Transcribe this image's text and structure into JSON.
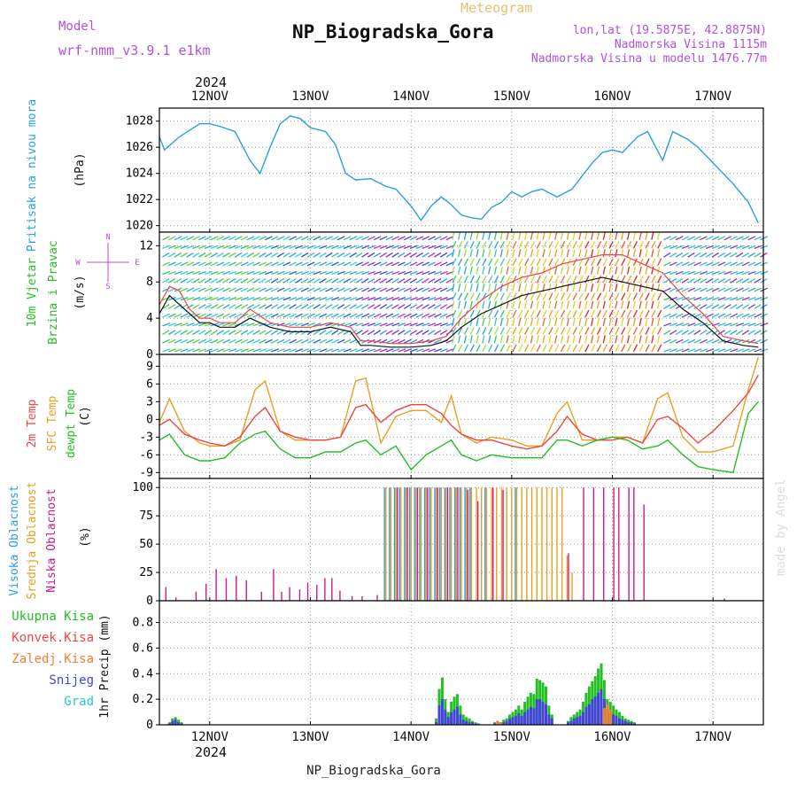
{
  "header": {
    "title": "NP_Biogradska_Gora",
    "meteogram_label": "Meteogram",
    "model_label": "Model",
    "model_name": "wrf-nmm_v3.9.1  e1km",
    "lonlat": "lon,lat (19.5875E, 42.8875N)",
    "elevation": "Nadmorska Visina 1115m",
    "model_elevation": "Nadmorska Visina u modelu 1476.77m",
    "footer_station": "NP_Biogradska_Gora",
    "credit": "made by Angel",
    "year": "2024"
  },
  "colors": {
    "pressure": "#2a9fe0",
    "temp2m": "#ee4444",
    "sfc_temp": "#e8a020",
    "dewpoint": "#22c022",
    "cloud_high": "#2a9fe0",
    "cloud_mid": "#e8a020",
    "cloud_low": "#cc1a88",
    "precip_total": "#22c022",
    "precip_conv": "#ee4444",
    "precip_frz": "#f08030",
    "precip_snow": "#4444dd",
    "precip_grad": "#22cccc",
    "label_violet": "#b050e0"
  },
  "chart_data": [
    {
      "type": "line",
      "panel": "pressure",
      "ylabel_title": "Pritisak na nivou mora",
      "ylabel_unit": "(hPa)",
      "ylim": [
        1019.5,
        1029
      ],
      "yticks": [
        "1020",
        "1022",
        "1024",
        "1026",
        "1028"
      ],
      "x_days": [
        11.5,
        11.55,
        11.7,
        11.9,
        12.0,
        12.1,
        12.25,
        12.4,
        12.5,
        12.6,
        12.7,
        12.8,
        12.9,
        13.0,
        13.15,
        13.25,
        13.35,
        13.45,
        13.6,
        13.75,
        13.85,
        14.0,
        14.1,
        14.2,
        14.3,
        14.4,
        14.5,
        14.6,
        14.7,
        14.8,
        14.9,
        15.0,
        15.1,
        15.2,
        15.3,
        15.45,
        15.6,
        15.7,
        15.8,
        15.9,
        16.0,
        16.1,
        16.25,
        16.35,
        16.5,
        16.6,
        16.75,
        16.85,
        17.0,
        17.2,
        17.35,
        17.45
      ],
      "series": [
        {
          "values": [
            1026.8,
            1025.8,
            1026.8,
            1027.8,
            1027.8,
            1027.6,
            1027.2,
            1025.0,
            1024.0,
            1026.0,
            1027.8,
            1028.4,
            1028.2,
            1027.5,
            1027.2,
            1026.2,
            1024.0,
            1023.5,
            1023.6,
            1023.0,
            1022.8,
            1021.5,
            1020.4,
            1021.5,
            1022.2,
            1021.6,
            1020.8,
            1020.6,
            1020.5,
            1021.4,
            1021.8,
            1022.6,
            1022.2,
            1022.6,
            1022.8,
            1022.2,
            1022.8,
            1023.8,
            1024.8,
            1025.6,
            1025.8,
            1025.6,
            1026.8,
            1027.2,
            1025.0,
            1027.2,
            1026.6,
            1026.0,
            1024.8,
            1023.2,
            1021.8,
            1020.2
          ]
        }
      ]
    },
    {
      "type": "line",
      "panel": "wind",
      "ylabel_title": "10m Vjetar",
      "ylabel_title2": "Brzina i Pravac",
      "ylabel_unit": "(m/s)",
      "compass_n": "N",
      "compass_e": "E",
      "compass_w": "W",
      "compass_s": "S",
      "ylim": [
        0,
        13.5
      ],
      "yticks": [
        "0",
        "4",
        "8",
        "12"
      ],
      "x_days": [
        11.5,
        11.6,
        11.7,
        11.8,
        11.9,
        12.0,
        12.1,
        12.25,
        12.4,
        12.6,
        12.8,
        13.0,
        13.2,
        13.4,
        13.5,
        13.6,
        13.8,
        14.0,
        14.2,
        14.35,
        14.5,
        14.7,
        14.9,
        15.1,
        15.3,
        15.5,
        15.7,
        15.9,
        16.1,
        16.3,
        16.5,
        16.7,
        16.9,
        17.1,
        17.3,
        17.45
      ],
      "series": [
        {
          "name": "speed",
          "values": [
            4.5,
            6.5,
            5.5,
            4.5,
            3.5,
            3.5,
            3.0,
            3.0,
            4.0,
            3.0,
            2.5,
            2.5,
            3.0,
            2.5,
            1.0,
            1.0,
            0.8,
            0.8,
            1.0,
            1.5,
            3.0,
            4.5,
            5.5,
            6.5,
            7.0,
            7.5,
            8.0,
            8.5,
            8.0,
            7.5,
            7.0,
            5.0,
            3.5,
            1.5,
            1.0,
            0.8
          ]
        },
        {
          "name": "gust",
          "values": [
            5.5,
            7.5,
            7.0,
            5.0,
            4.0,
            4.0,
            3.5,
            3.5,
            5.0,
            3.5,
            3.0,
            3.0,
            3.5,
            3.0,
            1.5,
            1.5,
            1.2,
            1.2,
            1.5,
            2.0,
            4.0,
            6.0,
            7.5,
            8.5,
            9.0,
            10.0,
            10.5,
            11.0,
            11.0,
            10.0,
            9.0,
            6.5,
            4.5,
            2.0,
            1.5,
            1.2
          ]
        }
      ]
    },
    {
      "type": "line",
      "panel": "temperature",
      "ylabel_title1": "2m Temp",
      "ylabel_title2": "SFC Temp",
      "ylabel_title3": "dewpt Temp",
      "ylabel_unit": "(C)",
      "ylim": [
        -10,
        11
      ],
      "yticks": [
        "-9",
        "-6",
        "-3",
        "0",
        "3",
        "6",
        "9"
      ],
      "x_days": [
        11.5,
        11.6,
        11.75,
        11.9,
        12.0,
        12.15,
        12.3,
        12.45,
        12.55,
        12.7,
        12.85,
        13.0,
        13.15,
        13.3,
        13.45,
        13.55,
        13.7,
        13.85,
        14.0,
        14.15,
        14.3,
        14.4,
        14.5,
        14.65,
        14.8,
        15.0,
        15.15,
        15.3,
        15.45,
        15.55,
        15.7,
        15.85,
        16.0,
        16.15,
        16.3,
        16.45,
        16.55,
        16.7,
        16.85,
        17.0,
        17.2,
        17.35,
        17.45
      ],
      "series": [
        {
          "name": "2m Temp",
          "values": [
            -1.0,
            0.0,
            -2.5,
            -3.5,
            -4.0,
            -4.5,
            -3.0,
            0.5,
            2.0,
            -2.0,
            -3.0,
            -3.5,
            -3.5,
            -3.0,
            2.0,
            2.5,
            -0.5,
            1.5,
            2.5,
            2.5,
            1.0,
            -1.0,
            -2.5,
            -3.5,
            -3.5,
            -4.5,
            -5.0,
            -4.5,
            -2.0,
            0.5,
            -2.5,
            -3.5,
            -3.5,
            -3.0,
            -4.0,
            0.0,
            0.5,
            -1.5,
            -4.0,
            -2.0,
            1.5,
            4.5,
            7.5
          ]
        },
        {
          "name": "SFC Temp",
          "values": [
            -0.5,
            3.5,
            -2.0,
            -4.0,
            -4.5,
            -4.5,
            -3.5,
            5.0,
            6.5,
            -2.0,
            -3.5,
            -3.5,
            -3.5,
            -3.0,
            6.5,
            7.0,
            -4.0,
            0.5,
            1.5,
            1.5,
            -0.5,
            4.0,
            -2.5,
            -4.0,
            -3.0,
            -3.5,
            -4.5,
            -4.5,
            1.0,
            3.0,
            -3.5,
            -3.5,
            -3.0,
            -3.0,
            -4.0,
            3.5,
            4.5,
            -3.0,
            -5.5,
            -5.5,
            -4.5,
            5.0,
            10.5
          ]
        },
        {
          "name": "dewpt Temp",
          "values": [
            -3.5,
            -2.5,
            -6.0,
            -7.0,
            -7.0,
            -6.5,
            -4.0,
            -2.5,
            -2.0,
            -5.0,
            -6.5,
            -6.5,
            -5.5,
            -5.5,
            -4.0,
            -3.5,
            -6.0,
            -4.5,
            -8.5,
            -6.0,
            -4.5,
            -3.5,
            -6.0,
            -7.0,
            -6.0,
            -6.5,
            -6.5,
            -6.5,
            -3.5,
            -3.5,
            -4.5,
            -3.5,
            -3.0,
            -3.5,
            -5.0,
            -4.5,
            -3.5,
            -6.0,
            -8.0,
            -8.5,
            -9.0,
            1.0,
            3.0
          ]
        }
      ]
    },
    {
      "type": "bar",
      "panel": "clouds",
      "ylabel_high": "Visoka Oblacnost",
      "ylabel_mid": "Srednja Oblacnost",
      "ylabel_low": "Niska Oblacnost",
      "ylabel_unit": "(%)",
      "ylim": [
        0,
        108
      ],
      "yticks": [
        "0",
        "25",
        "50",
        "75",
        "100"
      ],
      "x_days": [
        11.55,
        11.65,
        11.75,
        11.85,
        11.95,
        12.05,
        12.15,
        12.25,
        12.35,
        12.5,
        12.62,
        12.7,
        12.78,
        12.88,
        12.96,
        13.05,
        13.13,
        13.2,
        13.28,
        13.4,
        13.5,
        13.65,
        13.75,
        13.8,
        13.85,
        13.9,
        13.95,
        14.0,
        14.05,
        14.1,
        14.15,
        14.2,
        14.25,
        14.3,
        14.35,
        14.4,
        14.45,
        14.5,
        14.55,
        14.6,
        14.65,
        14.7,
        14.75,
        14.8,
        14.85,
        14.9,
        14.95,
        15.0,
        15.05,
        15.1,
        15.15,
        15.2,
        15.25,
        15.3,
        15.35,
        15.4,
        15.45,
        15.5,
        15.55,
        15.6,
        15.65,
        15.7,
        15.75,
        15.8,
        15.85,
        15.9,
        15.95,
        16.0,
        16.05,
        16.1,
        16.15,
        16.2,
        16.25,
        16.3,
        16.35,
        16.5,
        16.7,
        16.85,
        17.1
      ],
      "series": [
        {
          "name": "Visoka Oblacnost",
          "values": [
            0,
            0,
            0,
            0,
            0,
            0,
            0,
            0,
            0,
            0,
            0,
            0,
            0,
            0,
            0,
            0,
            0,
            0,
            0,
            0,
            0,
            0,
            100,
            100,
            100,
            100,
            100,
            100,
            100,
            100,
            100,
            100,
            100,
            100,
            100,
            100,
            100,
            100,
            100,
            100,
            0,
            0,
            100,
            0,
            0,
            0,
            0,
            0,
            100,
            0,
            0,
            0,
            0,
            0,
            0,
            0,
            0,
            0,
            0,
            0,
            0,
            0,
            0,
            0,
            0,
            0,
            0,
            0,
            0,
            0,
            0,
            0,
            0,
            0,
            0,
            0,
            0,
            0,
            0
          ]
        },
        {
          "name": "Srednja Oblacnost",
          "values": [
            0,
            0,
            0,
            0,
            0,
            0,
            0,
            0,
            0,
            0,
            0,
            0,
            0,
            0,
            0,
            0,
            0,
            0,
            0,
            0,
            0,
            0,
            100,
            100,
            100,
            100,
            100,
            100,
            100,
            100,
            100,
            100,
            100,
            100,
            100,
            100,
            100,
            100,
            100,
            100,
            100,
            100,
            100,
            100,
            100,
            100,
            100,
            100,
            100,
            100,
            100,
            100,
            100,
            100,
            100,
            100,
            100,
            100,
            40,
            25,
            0,
            0,
            0,
            0,
            0,
            0,
            0,
            0,
            0,
            0,
            0,
            0,
            0,
            0,
            0,
            0,
            0,
            0,
            0
          ]
        },
        {
          "name": "Niska Oblacnost",
          "values": [
            12,
            3,
            0,
            8,
            15,
            28,
            20,
            22,
            18,
            8,
            28,
            8,
            12,
            10,
            16,
            14,
            20,
            20,
            9,
            4,
            4,
            5,
            0,
            0,
            100,
            0,
            100,
            0,
            100,
            0,
            100,
            0,
            100,
            0,
            100,
            0,
            100,
            0,
            98,
            0,
            88,
            0,
            0,
            100,
            0,
            98,
            0,
            0,
            0,
            0,
            0,
            0,
            0,
            0,
            0,
            0,
            0,
            0,
            42,
            0,
            0,
            100,
            0,
            100,
            0,
            100,
            0,
            100,
            100,
            0,
            100,
            100,
            0,
            85,
            0,
            0,
            0,
            0,
            2
          ]
        }
      ]
    },
    {
      "type": "bar",
      "panel": "precipitation",
      "ylabel_unit": "1hr Precip (mm)",
      "legend": [
        "Ukupna Kisa",
        "Konvek.Kisa",
        "Zaledj.Kisa",
        "Snijeg",
        "Grad"
      ],
      "ylim": [
        0,
        0.97
      ],
      "yticks": [
        "0",
        "0.2",
        "0.4",
        "0.6",
        "0.8"
      ],
      "x_days": [
        11.6,
        11.63,
        11.66,
        11.69,
        11.72,
        14.25,
        14.28,
        14.31,
        14.34,
        14.37,
        14.4,
        14.43,
        14.46,
        14.49,
        14.52,
        14.55,
        14.58,
        14.61,
        14.64,
        14.67,
        14.83,
        14.86,
        14.89,
        14.92,
        14.95,
        14.98,
        15.01,
        15.04,
        15.07,
        15.1,
        15.13,
        15.16,
        15.19,
        15.22,
        15.25,
        15.28,
        15.31,
        15.34,
        15.37,
        15.4,
        15.56,
        15.59,
        15.62,
        15.65,
        15.68,
        15.71,
        15.74,
        15.77,
        15.8,
        15.83,
        15.86,
        15.89,
        15.92,
        15.95,
        15.98,
        16.01,
        16.04,
        16.07,
        16.1,
        16.13,
        16.16,
        16.19,
        16.22
      ],
      "series": [
        {
          "name": "Ukupna Kisa",
          "values": [
            0.02,
            0.05,
            0.06,
            0.04,
            0.02,
            0.05,
            0.28,
            0.37,
            0.2,
            0.1,
            0.18,
            0.22,
            0.24,
            0.15,
            0.08,
            0.06,
            0.05,
            0.03,
            0.02,
            0.01,
            0.02,
            0.03,
            0.02,
            0.04,
            0.05,
            0.08,
            0.1,
            0.12,
            0.15,
            0.12,
            0.18,
            0.22,
            0.25,
            0.24,
            0.36,
            0.35,
            0.33,
            0.3,
            0.15,
            0.08,
            0.03,
            0.06,
            0.08,
            0.1,
            0.12,
            0.18,
            0.25,
            0.3,
            0.34,
            0.38,
            0.44,
            0.48,
            0.35,
            0.2,
            0.18,
            0.15,
            0.12,
            0.1,
            0.07,
            0.05,
            0.04,
            0.03,
            0.02
          ]
        },
        {
          "name": "Snijeg",
          "values": [
            0.01,
            0.03,
            0.04,
            0.02,
            0.01,
            0.02,
            0.15,
            0.2,
            0.12,
            0.06,
            0.1,
            0.12,
            0.14,
            0.08,
            0.04,
            0.03,
            0.02,
            0.02,
            0.01,
            0.01,
            0.01,
            0.02,
            0.01,
            0.02,
            0.03,
            0.05,
            0.06,
            0.07,
            0.09,
            0.07,
            0.1,
            0.12,
            0.14,
            0.13,
            0.2,
            0.2,
            0.18,
            0.16,
            0.08,
            0.05,
            0.02,
            0.03,
            0.05,
            0.06,
            0.07,
            0.1,
            0.14,
            0.16,
            0.2,
            0.22,
            0.25,
            0.28,
            0.2,
            0.12,
            0.1,
            0.08,
            0.07,
            0.05,
            0.04,
            0.03,
            0.02,
            0.02,
            0.01
          ]
        },
        {
          "name": "Zaledj.Kisa",
          "values": [
            0,
            0,
            0,
            0,
            0,
            0,
            0,
            0,
            0,
            0,
            0,
            0,
            0,
            0,
            0,
            0,
            0,
            0,
            0,
            0,
            0,
            0.03,
            0.02,
            0,
            0,
            0,
            0,
            0,
            0,
            0,
            0,
            0,
            0,
            0,
            0,
            0,
            0,
            0,
            0,
            0,
            0,
            0,
            0,
            0,
            0,
            0,
            0,
            0,
            0,
            0,
            0,
            0,
            0.13,
            0.16,
            0.12,
            0,
            0,
            0,
            0,
            0,
            0,
            0,
            0
          ]
        }
      ],
      "x_ticks": [
        "12NOV",
        "13NOV",
        "14NOV",
        "15NOV",
        "16NOV",
        "17NOV"
      ],
      "xlim_days": [
        11.5,
        17.5
      ]
    }
  ]
}
